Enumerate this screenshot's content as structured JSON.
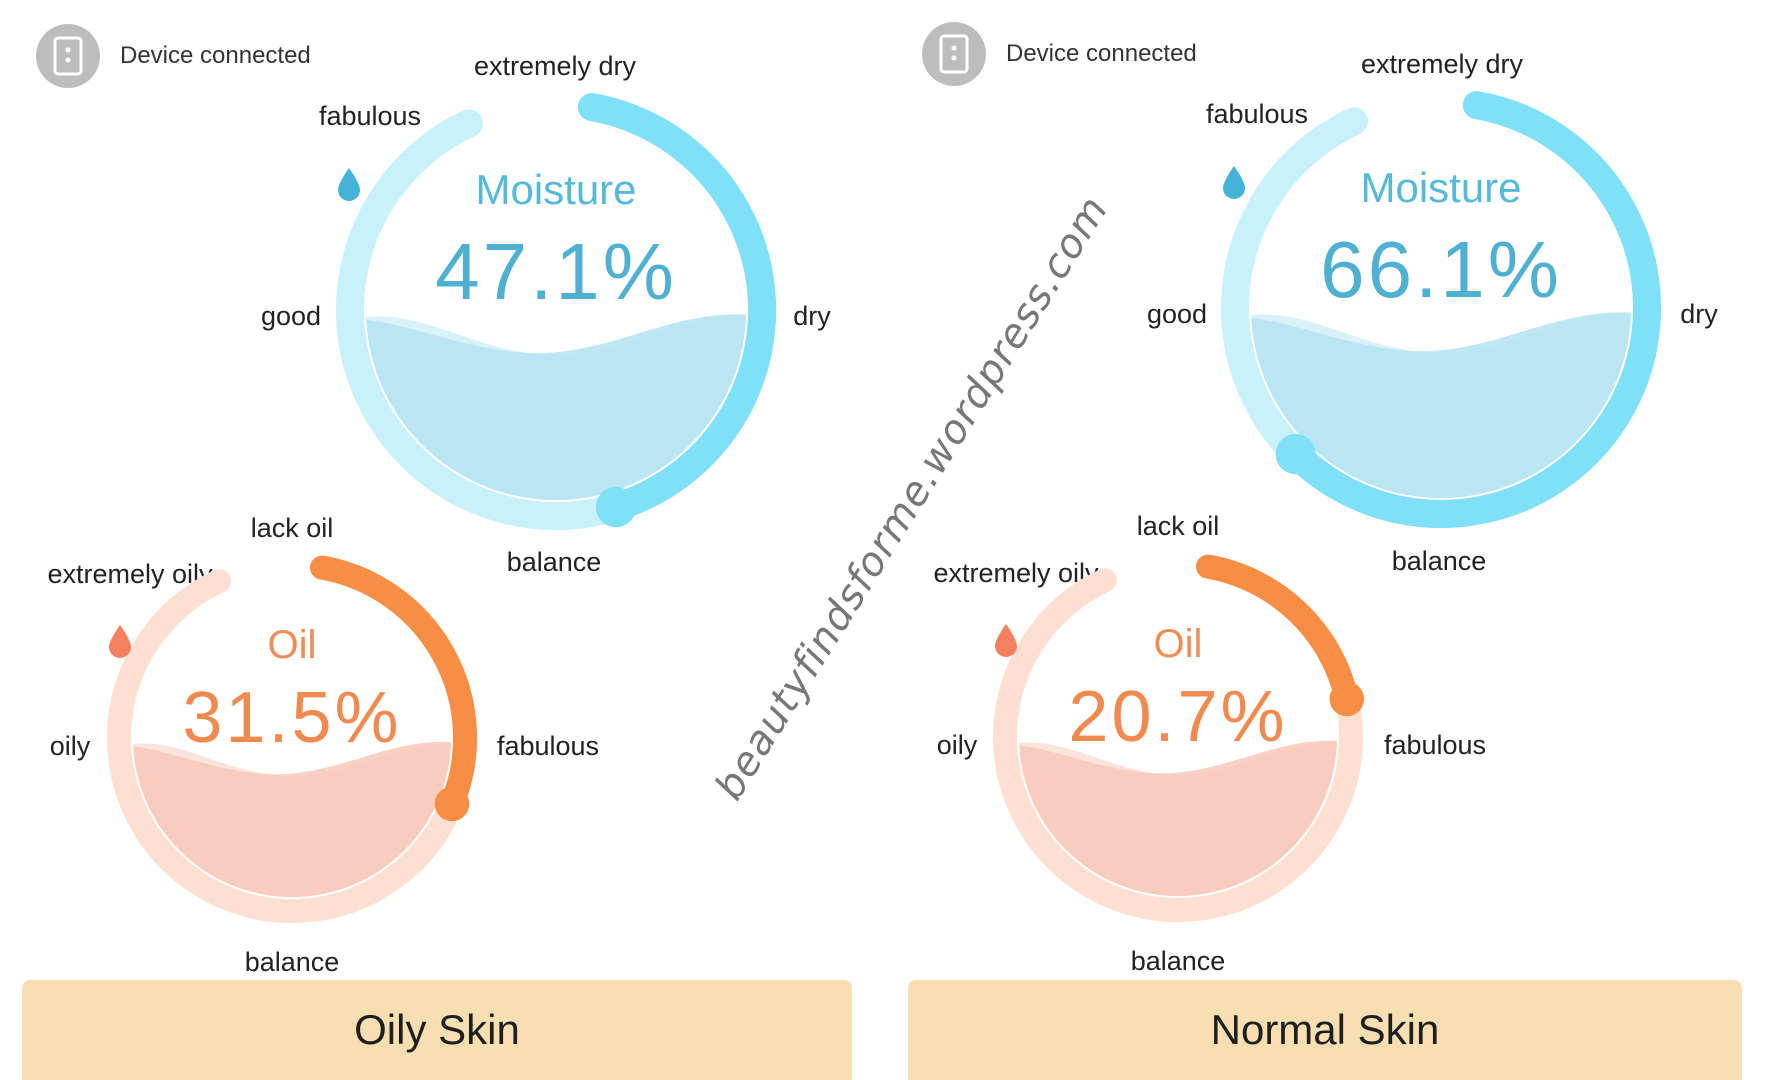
{
  "panels": [
    {
      "status": "Device connected",
      "moisture": {
        "title": "Moisture",
        "value": "47.1%",
        "level": 0.471,
        "labels": {
          "top": "extremely dry",
          "top_left": "fabulous",
          "left": "good",
          "right": "dry",
          "bottom": "balance"
        }
      },
      "oil": {
        "title": "Oil",
        "value": "31.5%",
        "level": 0.315,
        "labels": {
          "top": "lack oil",
          "top_left": "extremely oily",
          "left": "oily",
          "right": "fabulous",
          "bottom": "balance"
        }
      },
      "result": "Oily Skin"
    },
    {
      "status": "Device connected",
      "moisture": {
        "title": "Moisture",
        "value": "66.1%",
        "level": 0.661,
        "labels": {
          "top": "extremely dry",
          "top_left": "fabulous",
          "left": "good",
          "right": "dry",
          "bottom": "balance"
        }
      },
      "oil": {
        "title": "Oil",
        "value": "20.7%",
        "level": 0.207,
        "labels": {
          "top": "lack oil",
          "top_left": "extremely oily",
          "left": "oily",
          "right": "fabulous",
          "bottom": "balance"
        }
      },
      "result": "Normal Skin"
    }
  ],
  "watermark": "beautyfindsforme.wordpress.com",
  "colors": {
    "moisture_arc": "#7fe0f7",
    "moisture_track": "#c8f1fb",
    "moisture_fill": "#b4e3f1",
    "oil_arc": "#f88d44",
    "oil_track": "#fde0d1",
    "oil_fill": "#f7c9bb",
    "result_bg": "#f7dfb2"
  }
}
